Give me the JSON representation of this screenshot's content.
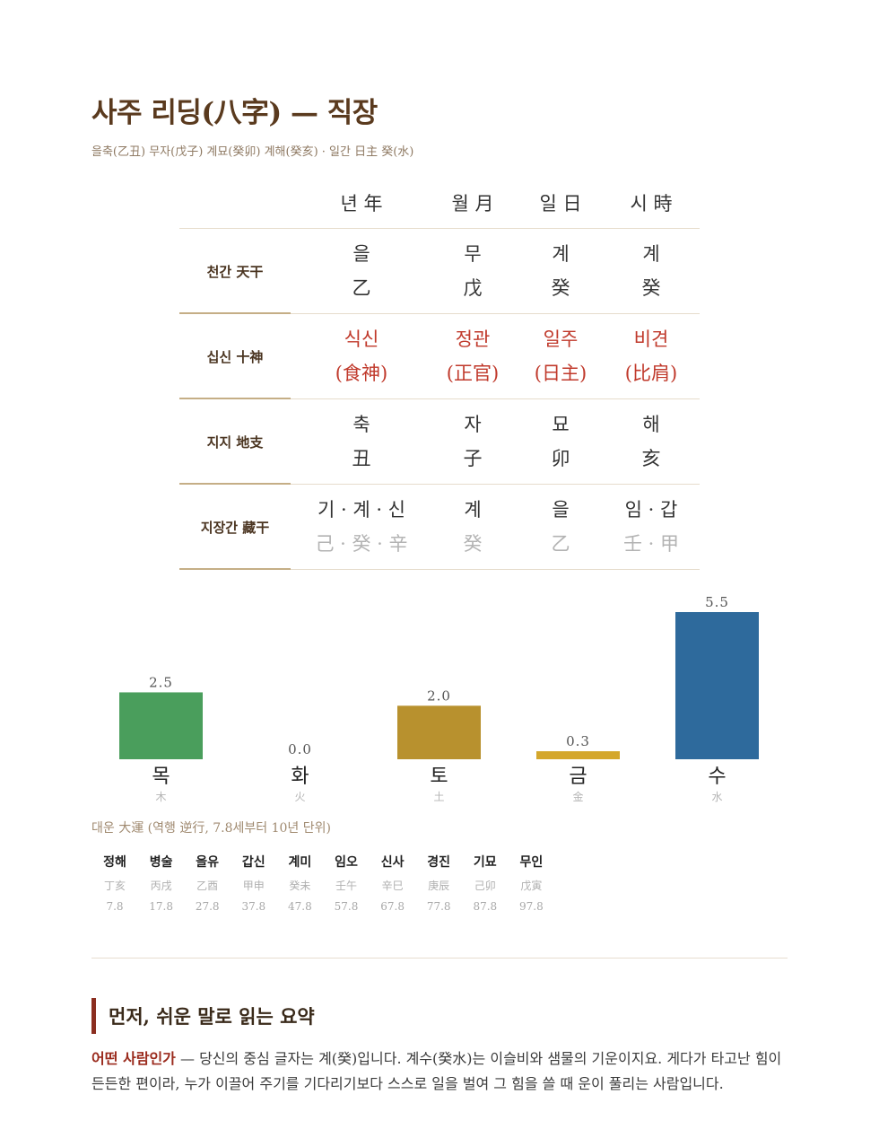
{
  "header": {
    "title": "사주 리딩(八字) — 직장",
    "subtitle": "을축(乙丑) 무자(戊子) 계묘(癸卯) 계해(癸亥)  ·  일간 日主 癸(水)"
  },
  "pillars": {
    "columns": [
      "년 年",
      "월 月",
      "일 日",
      "시 時"
    ],
    "rows": [
      {
        "label": "천간 天干",
        "cells": [
          [
            "을",
            "乙"
          ],
          [
            "무",
            "戊"
          ],
          [
            "계",
            "癸"
          ],
          [
            "계",
            "癸"
          ]
        ]
      },
      {
        "label": "십신 十神",
        "cells": [
          [
            "식신",
            "(食神)"
          ],
          [
            "정관",
            "(正官)"
          ],
          [
            "일주",
            "(日主)"
          ],
          [
            "비견",
            "(比肩)"
          ]
        ]
      },
      {
        "label": "지지 地支",
        "cells": [
          [
            "축",
            "丑"
          ],
          [
            "자",
            "子"
          ],
          [
            "묘",
            "卯"
          ],
          [
            "해",
            "亥"
          ]
        ]
      },
      {
        "label": "지장간 藏干",
        "cells": [
          [
            "기 · 계 · 신",
            "己 · 癸 · 辛"
          ],
          [
            "계",
            "癸"
          ],
          [
            "을",
            "乙"
          ],
          [
            "임 · 갑",
            "壬 · 甲"
          ]
        ]
      }
    ]
  },
  "chart_data": {
    "type": "bar",
    "categories": [
      "목",
      "화",
      "토",
      "금",
      "수"
    ],
    "categories_hanja": [
      "木",
      "火",
      "土",
      "金",
      "水"
    ],
    "values": [
      2.5,
      0.0,
      2.0,
      0.3,
      5.5
    ],
    "value_labels": [
      "2.5",
      "0.0",
      "2.0",
      "0.3",
      "5.5"
    ],
    "colors": [
      "#4a9e5c",
      "#c0392b",
      "#b8912e",
      "#d4a72c",
      "#2e6a9c"
    ],
    "ylim": [
      0,
      5.5
    ]
  },
  "daeun": {
    "title": "대운 大運 (역행 逆行, 7.8세부터 10년 단위)",
    "items": [
      {
        "gz": "정해",
        "han": "丁亥",
        "age": "7.8"
      },
      {
        "gz": "병술",
        "han": "丙戌",
        "age": "17.8"
      },
      {
        "gz": "을유",
        "han": "乙酉",
        "age": "27.8"
      },
      {
        "gz": "갑신",
        "han": "甲申",
        "age": "37.8"
      },
      {
        "gz": "계미",
        "han": "癸未",
        "age": "47.8"
      },
      {
        "gz": "임오",
        "han": "壬午",
        "age": "57.8"
      },
      {
        "gz": "신사",
        "han": "辛巳",
        "age": "67.8"
      },
      {
        "gz": "경진",
        "han": "庚辰",
        "age": "77.8"
      },
      {
        "gz": "기묘",
        "han": "己卯",
        "age": "87.8"
      },
      {
        "gz": "무인",
        "han": "戊寅",
        "age": "97.8"
      }
    ]
  },
  "summary": {
    "heading": "먼저, 쉬운 말로 읽는 요약",
    "lead": "어떤 사람인가",
    "text": " — 당신의 중심 글자는 계(癸)입니다. 계수(癸水)는 이슬비와 샘물의 기운이지요. 게다가 타고난 힘이 든든한 편이라, 누가 이끌어 주기를 기다리기보다 스스로 일을 벌여 그 힘을 쓸 때 운이 풀리는 사람입니다."
  }
}
